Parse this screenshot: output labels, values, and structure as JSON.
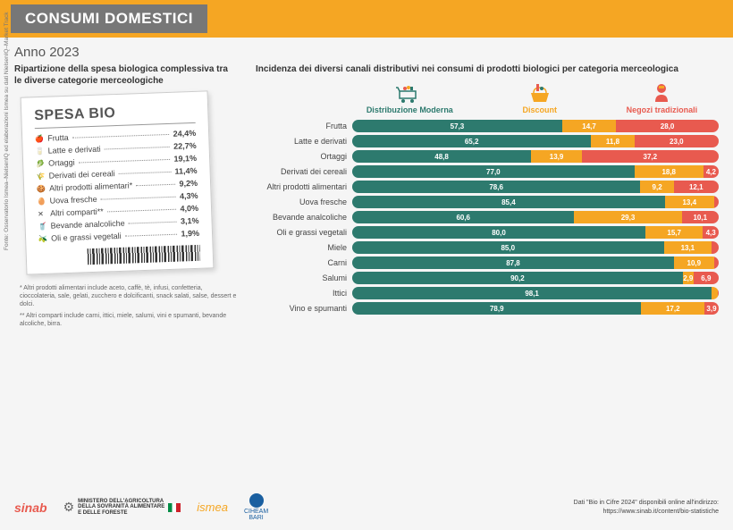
{
  "header": {
    "title": "CONSUMI DOMESTICI"
  },
  "year": "Anno 2023",
  "left": {
    "subtitle": "Ripartizione della spesa biologica complessiva tra le diverse categorie merceologiche",
    "receipt_title": "SPESA BIO",
    "items": [
      {
        "icon": "🍎",
        "label": "Frutta",
        "val": "24,4%"
      },
      {
        "icon": "🥛",
        "label": "Latte e derivati",
        "val": "22,7%"
      },
      {
        "icon": "🥬",
        "label": "Ortaggi",
        "val": "19,1%"
      },
      {
        "icon": "🌾",
        "label": "Derivati dei cereali",
        "val": "11,4%"
      },
      {
        "icon": "🍪",
        "label": "Altri prodotti alimentari*",
        "val": "9,2%"
      },
      {
        "icon": "🥚",
        "label": "Uova fresche",
        "val": "4,3%"
      },
      {
        "icon": "✕",
        "label": "Altri comparti**",
        "val": "4,0%"
      },
      {
        "icon": "🥤",
        "label": "Bevande analcoliche",
        "val": "3,1%"
      },
      {
        "icon": "🫒",
        "label": "Oli e grassi vegetali",
        "val": "1,9%"
      }
    ],
    "footnote1": "* Altri prodotti alimentari include aceto, caffè, tè, infusi, confetteria, cioccolateria, sale, gelati, zucchero e dolcificanti, snack salati, salse, dessert e dolci.",
    "footnote2": "** Altri comparti include carni, ittici, miele, salumi, vini e spumanti, bevande alcoliche, birra."
  },
  "right": {
    "subtitle": "Incidenza dei diversi canali distributivi nei consumi di prodotti biologici per categoria merceologica",
    "legend": {
      "dm": "Distribuzione Moderna",
      "disc": "Discount",
      "neg": "Negozi tradizionali"
    },
    "rows": [
      {
        "label": "Frutta",
        "dm": 57.3,
        "disc": 14.7,
        "neg": 28.0
      },
      {
        "label": "Latte e derivati",
        "dm": 65.2,
        "disc": 11.8,
        "neg": 23.0
      },
      {
        "label": "Ortaggi",
        "dm": 48.8,
        "disc": 13.9,
        "neg": 37.2
      },
      {
        "label": "Derivati dei cereali",
        "dm": 77.0,
        "disc": 18.8,
        "neg": 4.2
      },
      {
        "label": "Altri prodotti alimentari",
        "dm": 78.6,
        "disc": 9.2,
        "neg": 12.1
      },
      {
        "label": "Uova fresche",
        "dm": 85.4,
        "disc": 13.4,
        "neg": 1.3
      },
      {
        "label": "Bevande analcoliche",
        "dm": 60.6,
        "disc": 29.3,
        "neg": 10.1
      },
      {
        "label": "Oli e grassi vegetali",
        "dm": 80.0,
        "disc": 15.7,
        "neg": 4.3
      },
      {
        "label": "Miele",
        "dm": 85.0,
        "disc": 13.1,
        "neg": 1.9
      },
      {
        "label": "Carni",
        "dm": 87.8,
        "disc": 10.9,
        "neg": 1.3
      },
      {
        "label": "Salumi",
        "dm": 90.2,
        "disc": 2.9,
        "neg": 6.9
      },
      {
        "label": "Ittici",
        "dm": 98.1,
        "disc": 1.7,
        "neg": 0.2
      },
      {
        "label": "Vino e spumanti",
        "dm": 78.9,
        "disc": 17.2,
        "neg": 3.9
      }
    ],
    "colors": {
      "dm": "#2d7a6e",
      "disc": "#f5a623",
      "neg": "#e85a4f"
    }
  },
  "source_vertical": "Fonte: Osservatorio Ismea–NielsenIQ ed elaborazioni Ismea su dati NielsenIQ–Market Track",
  "footer": {
    "sinab": "sinab",
    "ministero": "MINISTERO DELL'AGRICOLTURA\nDELLA SOVRANITÀ ALIMENTARE\nE DELLE FORESTE",
    "ismea": "ismea",
    "ciheam": "CIHEAM\nBARI",
    "text1": "Dati \"Bio in Cifre 2024\" disponibili online all'indirizzo:",
    "text2": "https://www.sinab.it/content/bio-statistiche"
  }
}
